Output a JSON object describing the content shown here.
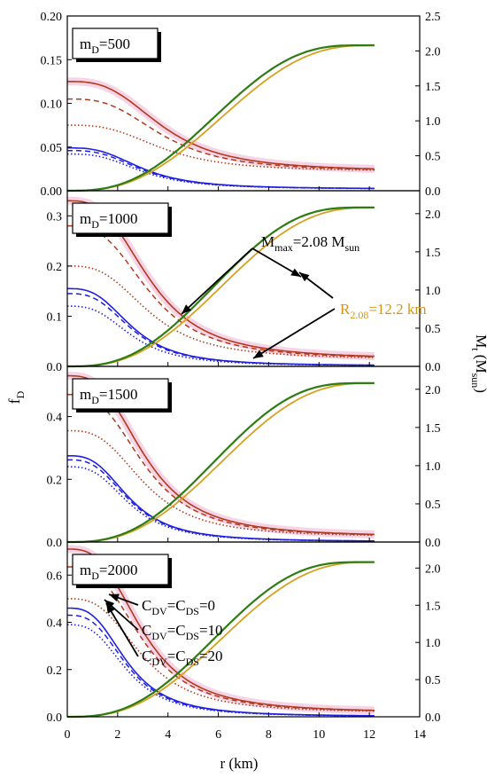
{
  "figure": {
    "xlabel": "r (km)",
    "left_ylabel": "f_D",
    "right_ylabel": "M_t (M_sun)",
    "x_ticks": [
      "0",
      "2",
      "4",
      "6",
      "8",
      "10",
      "12",
      "14"
    ],
    "colors": {
      "fD_heavy": "#b03a1e",
      "fD_light": "#1f1fe0",
      "mass_green": "#2e7d12",
      "mass_orange": "#d7a020",
      "pink_band": "#f4c6dc",
      "orange_text": "#d4961a",
      "axis": "#000000"
    },
    "annotations": {
      "mmax": "M_max=2.08 M_sun",
      "radius": "R_2.08=12.2 km",
      "legend": [
        "C_DV=C_DS=0",
        "C_DV=C_DS=10",
        "C_DV=C_DS=20"
      ]
    }
  },
  "chart_data": [
    {
      "type": "line",
      "panel_label": "m_D=500",
      "xlim": [
        0,
        14
      ],
      "left_ylim": [
        0,
        0.2
      ],
      "left_ticks": [
        "0.00",
        "0.05",
        "0.10",
        "0.15",
        "0.20"
      ],
      "right_ylim": [
        0,
        2.5
      ],
      "right_ticks": [
        "0.0",
        "0.5",
        "1.0",
        "1.5",
        "2.0",
        "2.5"
      ],
      "fD_heavy": {
        "solid_0": 0.125,
        "dash_0": 0.105,
        "dot_0": 0.075,
        "tail": 0.022,
        "width": 3.8
      },
      "fD_light": {
        "solid_0": 0.049,
        "dash_0": 0.046,
        "dot_0": 0.042,
        "tail": 0.002,
        "width": 3.0
      },
      "mass": {
        "max": 2.08,
        "green_R": 11.6,
        "orange_R": 12.2
      }
    },
    {
      "type": "line",
      "panel_label": "m_D=1000",
      "xlim": [
        0,
        14
      ],
      "left_ylim": [
        0,
        0.35
      ],
      "left_ticks": [
        "0.0",
        "0.1",
        "0.2",
        "0.3"
      ],
      "right_ylim": [
        0,
        2.3
      ],
      "right_ticks": [
        "0.0",
        "0.5",
        "1.0",
        "1.5",
        "2.0"
      ],
      "fD_heavy": {
        "solid_0": 0.33,
        "dash_0": 0.28,
        "dot_0": 0.2,
        "tail": 0.014,
        "width": 3.3
      },
      "fD_light": {
        "solid_0": 0.155,
        "dash_0": 0.145,
        "dot_0": 0.12,
        "tail": 0.001,
        "width": 2.6
      },
      "mass": {
        "max": 2.08,
        "green_R": 11.6,
        "orange_R": 12.2
      }
    },
    {
      "type": "line",
      "panel_label": "m_D=1500",
      "xlim": [
        0,
        14
      ],
      "left_ylim": [
        0,
        0.56
      ],
      "left_ticks": [
        "0.0",
        "0.2",
        "0.4"
      ],
      "right_ylim": [
        0,
        2.3
      ],
      "right_ticks": [
        "0.0",
        "0.5",
        "1.0",
        "1.5",
        "2.0"
      ],
      "fD_heavy": {
        "solid_0": 0.53,
        "dash_0": 0.47,
        "dot_0": 0.355,
        "tail": 0.016,
        "width": 3.1
      },
      "fD_light": {
        "solid_0": 0.275,
        "dash_0": 0.262,
        "dot_0": 0.24,
        "tail": 0.001,
        "width": 2.5
      },
      "mass": {
        "max": 2.08,
        "green_R": 11.6,
        "orange_R": 12.2
      }
    },
    {
      "type": "line",
      "panel_label": "m_D=2000",
      "xlim": [
        0,
        14
      ],
      "left_ylim": [
        0,
        0.74
      ],
      "left_ticks": [
        "0.0",
        "0.2",
        "0.4",
        "0.6"
      ],
      "right_ylim": [
        0,
        2.35
      ],
      "right_ticks": [
        "0.0",
        "0.5",
        "1.0",
        "1.5",
        "2.0"
      ],
      "fD_heavy": {
        "solid_0": 0.71,
        "dash_0": 0.635,
        "dot_0": 0.5,
        "tail": 0.017,
        "width": 3.0
      },
      "fD_light": {
        "solid_0": 0.46,
        "dash_0": 0.43,
        "dot_0": 0.39,
        "tail": 0.001,
        "width": 2.4
      },
      "mass": {
        "max": 2.08,
        "green_R": 11.6,
        "orange_R": 12.2
      }
    }
  ]
}
